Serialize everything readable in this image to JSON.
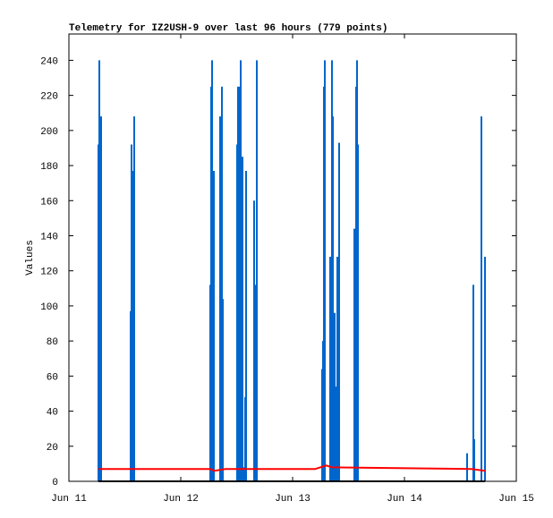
{
  "chart_data": {
    "type": "line",
    "title": "Telemetry for IZ2USH-9 over last 96 hours (779 points)",
    "y_label": "Values",
    "xlim": [
      0,
      4
    ],
    "ylim": [
      0,
      255
    ],
    "xticks": [
      {
        "value": 0,
        "label": "Jun 11"
      },
      {
        "value": 1,
        "label": "Jun 12"
      },
      {
        "value": 2,
        "label": "Jun 13"
      },
      {
        "value": 3,
        "label": "Jun 14"
      },
      {
        "value": 4,
        "label": "Jun 15"
      }
    ],
    "yticks": [
      0,
      20,
      40,
      60,
      80,
      100,
      120,
      140,
      160,
      180,
      200,
      220,
      240
    ],
    "series": [
      {
        "color": "#0066cc",
        "style": "impulses",
        "x": [
          0.264,
          0.272,
          0.288,
          0.552,
          0.56,
          0.568,
          0.584,
          1.264,
          1.272,
          1.28,
          1.296,
          1.352,
          1.368,
          1.376,
          1.504,
          1.512,
          1.52,
          1.528,
          1.536,
          1.552,
          1.56,
          1.576,
          1.584,
          1.656,
          1.672,
          1.68,
          2.264,
          2.272,
          2.28,
          2.288,
          2.336,
          2.352,
          2.36,
          2.376,
          2.384,
          2.4,
          2.408,
          2.416,
          2.552,
          2.568,
          2.576,
          2.584,
          3.56,
          3.616,
          3.624,
          3.688,
          3.72
        ],
        "values": [
          192,
          240,
          208,
          97,
          192,
          177,
          208,
          112,
          225,
          240,
          177,
          208,
          225,
          104,
          192,
          225,
          225,
          216,
          240,
          185,
          8,
          48,
          177,
          160,
          112,
          240,
          64,
          80,
          225,
          240,
          128,
          240,
          208,
          96,
          54,
          128,
          74,
          193,
          144,
          225,
          240,
          192,
          16,
          112,
          24,
          208,
          128
        ]
      },
      {
        "color": "#ff0000",
        "style": "lines",
        "x": [
          0.264,
          1.264,
          1.3,
          1.4,
          2.2,
          2.3,
          2.35,
          3.6,
          3.72
        ],
        "values": [
          7,
          7,
          6,
          7,
          7,
          9,
          8,
          7,
          6
        ]
      },
      {
        "color": "#000000",
        "style": "lines",
        "x": [
          0.264,
          3.72
        ],
        "values": [
          0,
          0
        ]
      }
    ]
  }
}
